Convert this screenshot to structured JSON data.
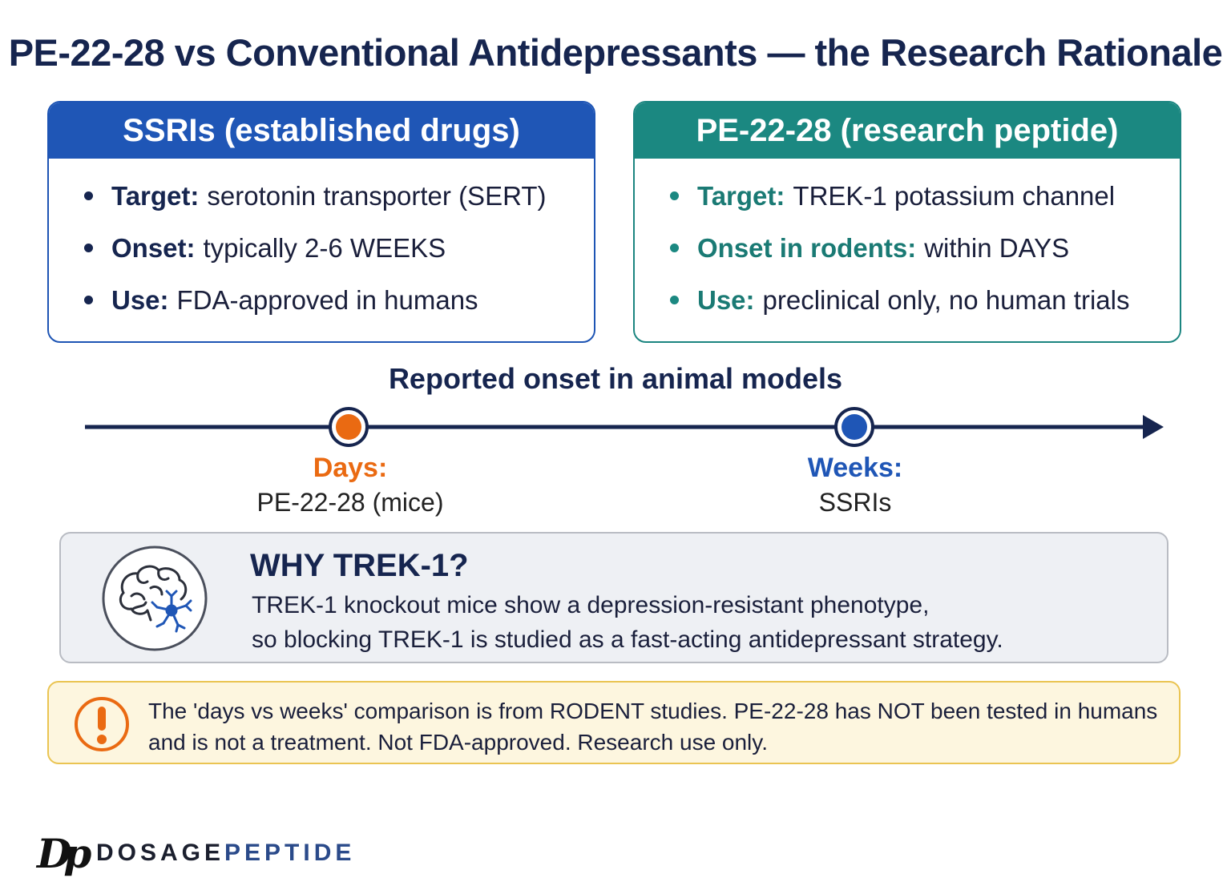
{
  "title": "PE-22-28 vs Conventional Antidepressants — the Research Rationale",
  "cards": {
    "ssri": {
      "header": "SSRIs (established drugs)",
      "items": [
        {
          "label": "Target:",
          "text": "serotonin transporter (SERT)"
        },
        {
          "label": "Onset:",
          "text": "typically 2-6 WEEKS"
        },
        {
          "label": "Use:",
          "text": "FDA-approved in humans"
        }
      ]
    },
    "pe": {
      "header": "PE-22-28 (research peptide)",
      "items": [
        {
          "label": "Target:",
          "text": "TREK-1 potassium channel"
        },
        {
          "label": "Onset in rodents:",
          "text": "within DAYS"
        },
        {
          "label": "Use:",
          "text": "preclinical only, no human trials"
        }
      ]
    }
  },
  "timeline": {
    "title": "Reported onset in animal models",
    "points": [
      {
        "heading": "Days:",
        "sub": "PE-22-28 (mice)",
        "color": "#ea6a12"
      },
      {
        "heading": "Weeks:",
        "sub": "SSRIs",
        "color": "#1f56b6"
      }
    ],
    "line_color": "#16254f"
  },
  "why": {
    "title": "WHY TREK-1?",
    "line1": "TREK-1 knockout mice show a depression-resistant phenotype,",
    "line2": "so blocking TREK-1 is studied as a fast-acting antidepressant strategy.",
    "icon": "brain-neuron-icon"
  },
  "warning": {
    "line1": "The 'days vs weeks' comparison is from RODENT studies. PE-22-28 has NOT been tested in humans",
    "line2": "and is not a treatment. Not FDA-approved. Research use only.",
    "icon": "exclamation-icon",
    "color": "#ea6a12"
  },
  "brand": {
    "mark": "Dp",
    "name_part1": "DOSAGE",
    "name_part2": "PEPTIDE"
  }
}
